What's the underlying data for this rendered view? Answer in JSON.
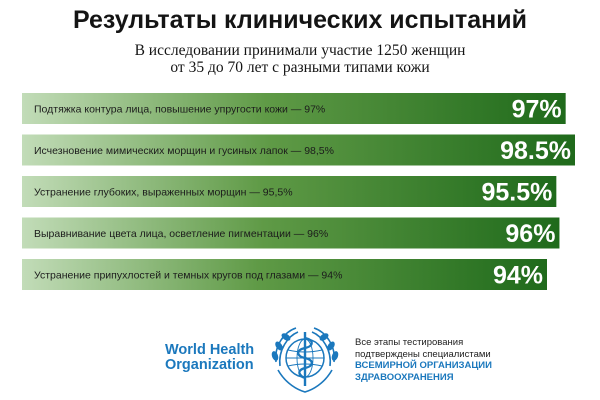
{
  "header": {
    "title": "Результаты клинических испытаний",
    "subtitle_lines": [
      "В исследовании принимали участие 1250 женщин",
      "от 35 до 70 лет с разными типами кожи"
    ]
  },
  "chart_data": {
    "type": "bar",
    "orientation": "horizontal",
    "title": "Результаты клинических испытаний",
    "categories": [
      "Подтяжка контура лица, повышение упругости кожи — 97%",
      "Исчезновение мимических морщин и гусиных лапок — 98,5%",
      "Устранение глубоких, выраженных морщин — 95,5%",
      "Выравнивание цвета лица, осветление пигментации — 96%",
      "Устранение припухлостей и темных кругов под глазами — 94%"
    ],
    "values": [
      97,
      98.5,
      95.5,
      96,
      94
    ],
    "value_labels": [
      "97%",
      "98.5%",
      "95.5%",
      "96%",
      "94%"
    ],
    "unit": "%",
    "colors": {
      "bar_start": "#c2dcb8",
      "bar_mid": "#5f9a46",
      "bar_end": "#1f6a1b",
      "text": "#ffffff"
    }
  },
  "footer": {
    "logo_text_lines": [
      "World Health",
      "Organization"
    ],
    "logo_icon": "who-emblem-icon",
    "note_lines": [
      "Все этапы тестирования",
      "подтверждены специалистами"
    ],
    "note_strong_lines": [
      "ВСЕМИРНОЙ ОРГАНИЗАЦИИ",
      "ЗДРАВООХРАНЕНИЯ"
    ],
    "brand_color": "#1b78bd"
  }
}
